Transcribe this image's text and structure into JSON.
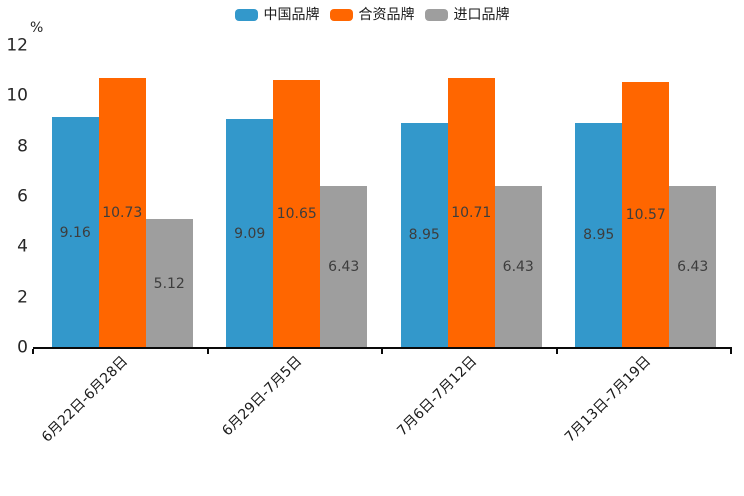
{
  "chart_data": {
    "type": "bar",
    "title": "",
    "xlabel": "",
    "ylabel": "%",
    "ylim": [
      0,
      12
    ],
    "yticks": [
      0,
      2,
      4,
      6,
      8,
      10,
      12
    ],
    "grid": false,
    "legend_position": "top",
    "categories": [
      "6月22日-6月28日",
      "6月29日-7月5日",
      "7月6日-7月12日",
      "7月13日-7月19日"
    ],
    "series": [
      {
        "name": "中国品牌",
        "color": "#3398CB",
        "values": [
          9.16,
          9.09,
          8.95,
          8.95
        ]
      },
      {
        "name": "合资品牌",
        "color": "#FF6600",
        "values": [
          10.73,
          10.65,
          10.71,
          10.57
        ]
      },
      {
        "name": "进口品牌",
        "color": "#9E9E9E",
        "values": [
          5.12,
          6.43,
          6.43,
          6.43
        ]
      }
    ],
    "colors": {
      "bar_label": "#3d3d3d",
      "axis": "#0a0a0a",
      "text": "#1a1a1a"
    }
  }
}
